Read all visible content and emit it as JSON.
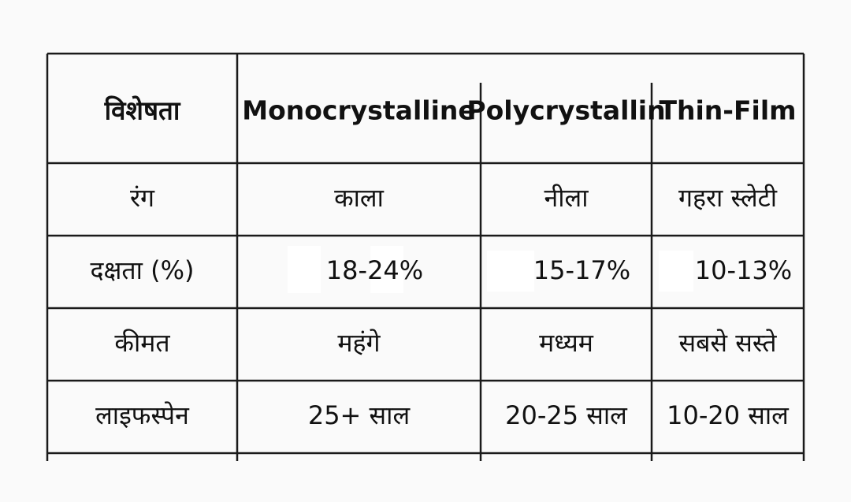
{
  "table": {
    "header": [
      "विशेषता",
      "Monocrystalline",
      "Polycrystallin",
      "Thin-Film"
    ],
    "rows": [
      [
        "रंग",
        "काला",
        "नीला",
        "गहरा स्लेटी"
      ],
      [
        "दक्षता (%)",
        "18-24%",
        "15-17%",
        "10-13%"
      ],
      [
        "कीमत",
        "महंगे",
        "मध्यम",
        "सबसे सस्ते"
      ],
      [
        "लाइफस्पेन",
        "25+ साल",
        "20-25 साल",
        "10-20 साल"
      ]
    ]
  }
}
